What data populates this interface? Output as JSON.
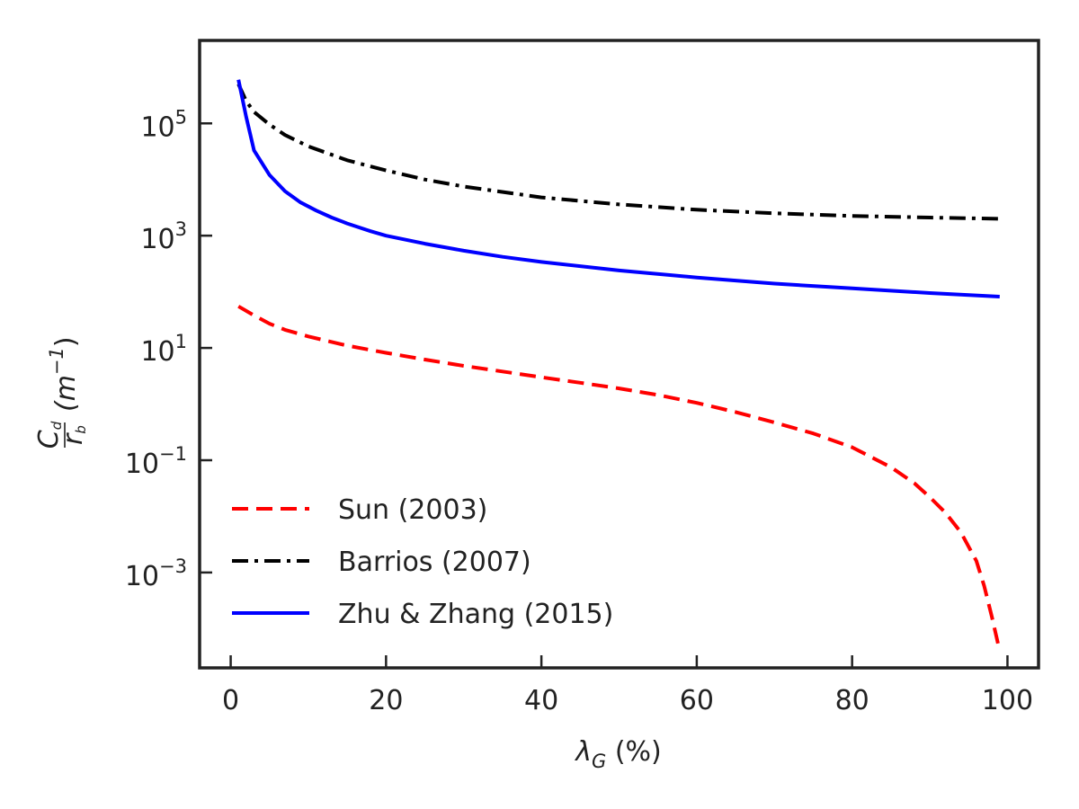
{
  "chart_data": {
    "type": "line",
    "title": "",
    "xlabel": {
      "symbol": "λ",
      "sub": "G",
      "unit": " (%)"
    },
    "ylabel": {
      "num": "C",
      "num_sub": "d",
      "den": "r",
      "den_sub": "b",
      "unit_open": "(m",
      "unit_exp": "−1",
      "unit_close": ")"
    },
    "xlim": [
      -4,
      104
    ],
    "ylim": [
      2e-05,
      3000000
    ],
    "yscale": "log",
    "grid": false,
    "legend_position": "lower-left",
    "x_ticks": [
      {
        "value": 0,
        "label": "0"
      },
      {
        "value": 20,
        "label": "20"
      },
      {
        "value": 40,
        "label": "40"
      },
      {
        "value": 60,
        "label": "60"
      },
      {
        "value": 80,
        "label": "80"
      },
      {
        "value": 100,
        "label": "100"
      }
    ],
    "y_ticks": [
      {
        "value": 100000,
        "base": "10",
        "exp": "5"
      },
      {
        "value": 1000,
        "base": "10",
        "exp": "3"
      },
      {
        "value": 10,
        "base": "10",
        "exp": "1"
      },
      {
        "value": 0.1,
        "base": "10",
        "exp": "−1"
      },
      {
        "value": 0.001,
        "base": "10",
        "exp": "−3"
      }
    ],
    "series": [
      {
        "name": "Sun (2003)",
        "color": "#ff0000",
        "style": "dashed",
        "x": [
          1,
          3,
          5,
          7,
          10,
          15,
          20,
          25,
          30,
          35,
          40,
          45,
          50,
          55,
          60,
          65,
          70,
          75,
          80,
          85,
          88,
          90,
          92,
          94,
          96,
          97,
          98,
          99
        ],
        "y": [
          55,
          38,
          27,
          21,
          16,
          11,
          8.2,
          6.2,
          4.8,
          3.8,
          3.0,
          2.4,
          1.9,
          1.45,
          1.05,
          0.72,
          0.47,
          0.3,
          0.17,
          0.075,
          0.039,
          0.022,
          0.0117,
          0.0052,
          0.0016,
          0.00058,
          0.00016,
          4e-05
        ]
      },
      {
        "name": "Barrios (2007)",
        "color": "#000000",
        "style": "dashdot",
        "x": [
          1,
          2,
          3,
          5,
          7,
          10,
          15,
          20,
          25,
          30,
          40,
          50,
          60,
          70,
          80,
          90,
          99
        ],
        "y": [
          500000,
          250000,
          160000,
          95000,
          62000,
          39000,
          22000,
          14500,
          10000,
          7500,
          4800,
          3600,
          2900,
          2500,
          2250,
          2100,
          2000
        ]
      },
      {
        "name": "Zhu & Zhang (2015)",
        "color": "#0000ff",
        "style": "solid",
        "x": [
          1,
          2,
          3,
          5,
          7,
          9,
          11,
          13,
          15,
          18,
          20,
          25,
          30,
          35,
          40,
          50,
          60,
          70,
          80,
          90,
          99
        ],
        "y": [
          600000,
          130000,
          33000,
          12000,
          6200,
          3900,
          2800,
          2100,
          1650,
          1200,
          1000,
          720,
          540,
          420,
          340,
          240,
          180,
          140,
          115,
          95,
          82
        ]
      }
    ]
  }
}
